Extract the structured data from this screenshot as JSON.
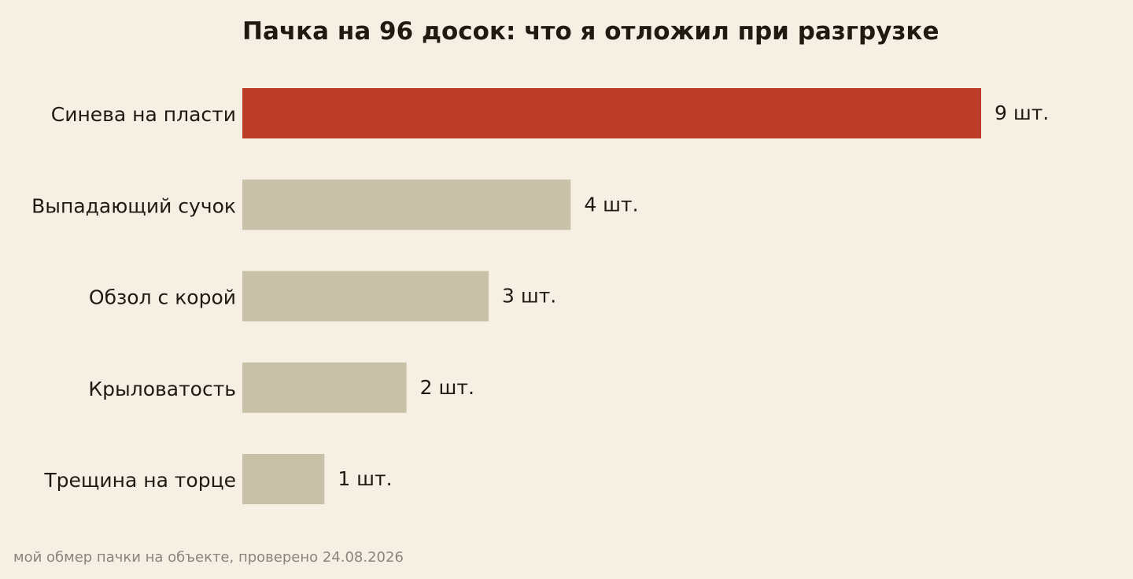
{
  "chart_data": {
    "type": "bar",
    "orientation": "horizontal",
    "title": "Пачка на 96 досок: что я отложил при разгрузке",
    "xlabel": "",
    "ylabel": "",
    "categories": [
      "Синева на пласти",
      "Выпадающий сучок",
      "Обзол с корой",
      "Крыловатость",
      "Трещина на торце"
    ],
    "values": [
      9,
      4,
      3,
      2,
      1
    ],
    "value_labels": [
      "9 шт.",
      "4 шт.",
      "3 шт.",
      "2 шт.",
      "1 шт."
    ],
    "xlim": [
      0,
      9
    ],
    "grid": false,
    "highlight_index": 0,
    "colors": {
      "highlight": "#bb3d28",
      "default": "#c9c0a8",
      "background": "#f6f0e4"
    }
  },
  "footnote": "мой обмер пачки на объекте, проверено 24.08.2026"
}
